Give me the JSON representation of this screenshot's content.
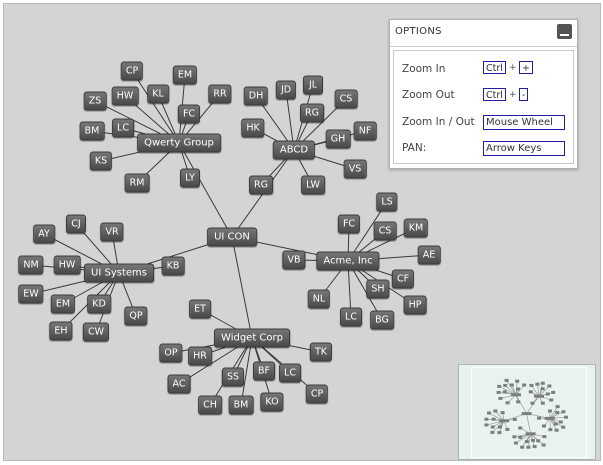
{
  "graph": {
    "nodes": [
      {
        "id": "uicon",
        "label": "UI CON",
        "hub": true
      },
      {
        "id": "qwerty",
        "label": "Qwerty Group",
        "hub": true
      },
      {
        "id": "abcd",
        "label": "ABCD",
        "hub": true
      },
      {
        "id": "acme",
        "label": "Acme, Inc",
        "hub": true
      },
      {
        "id": "uisys",
        "label": "UI Systems",
        "hub": true
      },
      {
        "id": "widget",
        "label": "Widget Corp",
        "hub": true
      },
      {
        "id": "q_cp",
        "label": "CP"
      },
      {
        "id": "q_em",
        "label": "EM"
      },
      {
        "id": "q_kl",
        "label": "KL"
      },
      {
        "id": "q_hw",
        "label": "HW"
      },
      {
        "id": "q_zs",
        "label": "ZS"
      },
      {
        "id": "q_fc",
        "label": "FC"
      },
      {
        "id": "q_rr",
        "label": "RR"
      },
      {
        "id": "q_bm",
        "label": "BM"
      },
      {
        "id": "q_lc",
        "label": "LC"
      },
      {
        "id": "q_ks",
        "label": "KS"
      },
      {
        "id": "q_rm",
        "label": "RM"
      },
      {
        "id": "q_ly",
        "label": "LY"
      },
      {
        "id": "a_dh",
        "label": "DH"
      },
      {
        "id": "a_jd",
        "label": "JD"
      },
      {
        "id": "a_jl",
        "label": "JL"
      },
      {
        "id": "a_cs",
        "label": "CS"
      },
      {
        "id": "a_rg",
        "label": "RG"
      },
      {
        "id": "a_hk",
        "label": "HK"
      },
      {
        "id": "a_gh",
        "label": "GH"
      },
      {
        "id": "a_nf",
        "label": "NF"
      },
      {
        "id": "a_vs",
        "label": "VS"
      },
      {
        "id": "a_lw",
        "label": "LW"
      },
      {
        "id": "a_rg2",
        "label": "RG"
      },
      {
        "id": "c_ls",
        "label": "LS"
      },
      {
        "id": "c_fc",
        "label": "FC"
      },
      {
        "id": "c_cs",
        "label": "CS"
      },
      {
        "id": "c_km",
        "label": "KM"
      },
      {
        "id": "c_ae",
        "label": "AE"
      },
      {
        "id": "c_vb",
        "label": "VB"
      },
      {
        "id": "c_cf",
        "label": "CF"
      },
      {
        "id": "c_sh",
        "label": "SH"
      },
      {
        "id": "c_hp",
        "label": "HP"
      },
      {
        "id": "c_nl",
        "label": "NL"
      },
      {
        "id": "c_lc",
        "label": "LC"
      },
      {
        "id": "c_bg",
        "label": "BG"
      },
      {
        "id": "u_cj",
        "label": "CJ"
      },
      {
        "id": "u_ay",
        "label": "AY"
      },
      {
        "id": "u_vr",
        "label": "VR"
      },
      {
        "id": "u_nm",
        "label": "NM"
      },
      {
        "id": "u_hw",
        "label": "HW"
      },
      {
        "id": "u_kb",
        "label": "KB"
      },
      {
        "id": "u_ew",
        "label": "EW"
      },
      {
        "id": "u_em",
        "label": "EM"
      },
      {
        "id": "u_kd",
        "label": "KD"
      },
      {
        "id": "u_qp",
        "label": "QP"
      },
      {
        "id": "u_eh",
        "label": "EH"
      },
      {
        "id": "u_cw",
        "label": "CW"
      },
      {
        "id": "w_et",
        "label": "ET"
      },
      {
        "id": "w_op",
        "label": "OP"
      },
      {
        "id": "w_hr",
        "label": "HR"
      },
      {
        "id": "w_tk",
        "label": "TK"
      },
      {
        "id": "w_ac",
        "label": "AC"
      },
      {
        "id": "w_ss",
        "label": "SS"
      },
      {
        "id": "w_bf",
        "label": "BF"
      },
      {
        "id": "w_lc",
        "label": "LC"
      },
      {
        "id": "w_cp",
        "label": "CP"
      },
      {
        "id": "w_ch",
        "label": "CH"
      },
      {
        "id": "w_bm",
        "label": "BM"
      },
      {
        "id": "w_ko",
        "label": "KO"
      }
    ],
    "edges": [
      [
        "uicon",
        "qwerty"
      ],
      [
        "uicon",
        "abcd"
      ],
      [
        "uicon",
        "acme"
      ],
      [
        "uicon",
        "uisys"
      ],
      [
        "uicon",
        "widget"
      ],
      [
        "qwerty",
        "q_cp"
      ],
      [
        "qwerty",
        "q_em"
      ],
      [
        "qwerty",
        "q_kl"
      ],
      [
        "qwerty",
        "q_hw"
      ],
      [
        "qwerty",
        "q_zs"
      ],
      [
        "qwerty",
        "q_fc"
      ],
      [
        "qwerty",
        "q_rr"
      ],
      [
        "qwerty",
        "q_bm"
      ],
      [
        "qwerty",
        "q_lc"
      ],
      [
        "qwerty",
        "q_ks"
      ],
      [
        "qwerty",
        "q_rm"
      ],
      [
        "qwerty",
        "q_ly"
      ],
      [
        "abcd",
        "a_dh"
      ],
      [
        "abcd",
        "a_jd"
      ],
      [
        "abcd",
        "a_jl"
      ],
      [
        "abcd",
        "a_cs"
      ],
      [
        "abcd",
        "a_rg"
      ],
      [
        "abcd",
        "a_hk"
      ],
      [
        "abcd",
        "a_gh"
      ],
      [
        "abcd",
        "a_nf"
      ],
      [
        "abcd",
        "a_vs"
      ],
      [
        "abcd",
        "a_lw"
      ],
      [
        "abcd",
        "a_rg2"
      ],
      [
        "acme",
        "c_ls"
      ],
      [
        "acme",
        "c_fc"
      ],
      [
        "acme",
        "c_cs"
      ],
      [
        "acme",
        "c_km"
      ],
      [
        "acme",
        "c_ae"
      ],
      [
        "acme",
        "c_vb"
      ],
      [
        "acme",
        "c_cf"
      ],
      [
        "acme",
        "c_sh"
      ],
      [
        "acme",
        "c_hp"
      ],
      [
        "acme",
        "c_nl"
      ],
      [
        "acme",
        "c_lc"
      ],
      [
        "acme",
        "c_bg"
      ],
      [
        "uisys",
        "u_cj"
      ],
      [
        "uisys",
        "u_ay"
      ],
      [
        "uisys",
        "u_vr"
      ],
      [
        "uisys",
        "u_nm"
      ],
      [
        "uisys",
        "u_hw"
      ],
      [
        "uisys",
        "u_kb"
      ],
      [
        "uisys",
        "u_ew"
      ],
      [
        "uisys",
        "u_em"
      ],
      [
        "uisys",
        "u_kd"
      ],
      [
        "uisys",
        "u_qp"
      ],
      [
        "uisys",
        "u_eh"
      ],
      [
        "uisys",
        "u_cw"
      ],
      [
        "widget",
        "w_et"
      ],
      [
        "widget",
        "w_op"
      ],
      [
        "widget",
        "w_hr"
      ],
      [
        "widget",
        "w_tk"
      ],
      [
        "widget",
        "w_ac"
      ],
      [
        "widget",
        "w_ss"
      ],
      [
        "widget",
        "w_bf"
      ],
      [
        "widget",
        "w_lc"
      ],
      [
        "widget",
        "w_cp"
      ],
      [
        "widget",
        "w_ch"
      ],
      [
        "widget",
        "w_bm"
      ],
      [
        "widget",
        "w_ko"
      ]
    ]
  },
  "options": {
    "title": "OPTIONS",
    "rows": [
      {
        "label": "Zoom In",
        "keys": [
          "Ctrl",
          "+"
        ]
      },
      {
        "label": "Zoom Out",
        "keys": [
          "Ctrl",
          "-"
        ]
      },
      {
        "label": "Zoom In / Out",
        "keys": [
          "Mouse Wheel"
        ]
      },
      {
        "label": "PAN:",
        "keys": [
          "Arrow Keys"
        ]
      }
    ]
  },
  "colors": {
    "canvas": "#d4d4d4",
    "node": "#4a4a4a",
    "edge": "#3a3a3a",
    "key_border": "#1f1f9f"
  }
}
